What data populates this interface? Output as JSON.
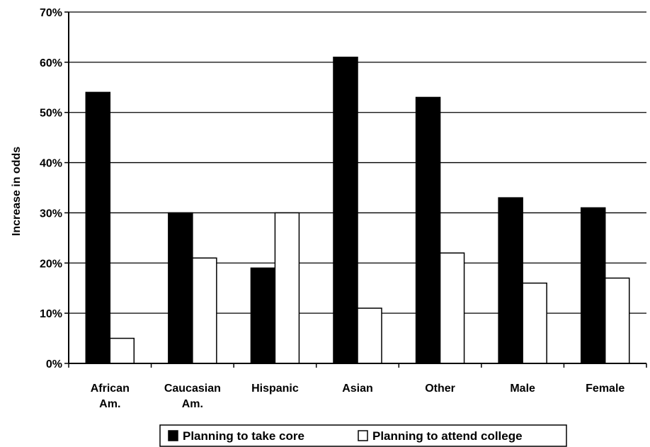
{
  "chart_data": {
    "type": "bar",
    "categories": [
      [
        "African",
        "Am."
      ],
      [
        "Caucasian",
        "Am."
      ],
      [
        "Hispanic"
      ],
      [
        "Asian"
      ],
      [
        "Other"
      ],
      [
        "Male"
      ],
      [
        "Female"
      ]
    ],
    "series": [
      {
        "name": "Planning to take core",
        "color": "#000000",
        "values": [
          54,
          30,
          19,
          61,
          53,
          33,
          31
        ]
      },
      {
        "name": "Planning to attend college",
        "color": "#ffffff",
        "values": [
          5,
          21,
          30,
          11,
          22,
          16,
          17
        ]
      }
    ],
    "ylabel": "Increase in odds",
    "ylim": [
      0,
      70
    ],
    "yticks": [
      "0%",
      "10%",
      "20%",
      "30%",
      "40%",
      "50%",
      "60%",
      "70%"
    ],
    "grid": true,
    "legend_position": "bottom"
  }
}
